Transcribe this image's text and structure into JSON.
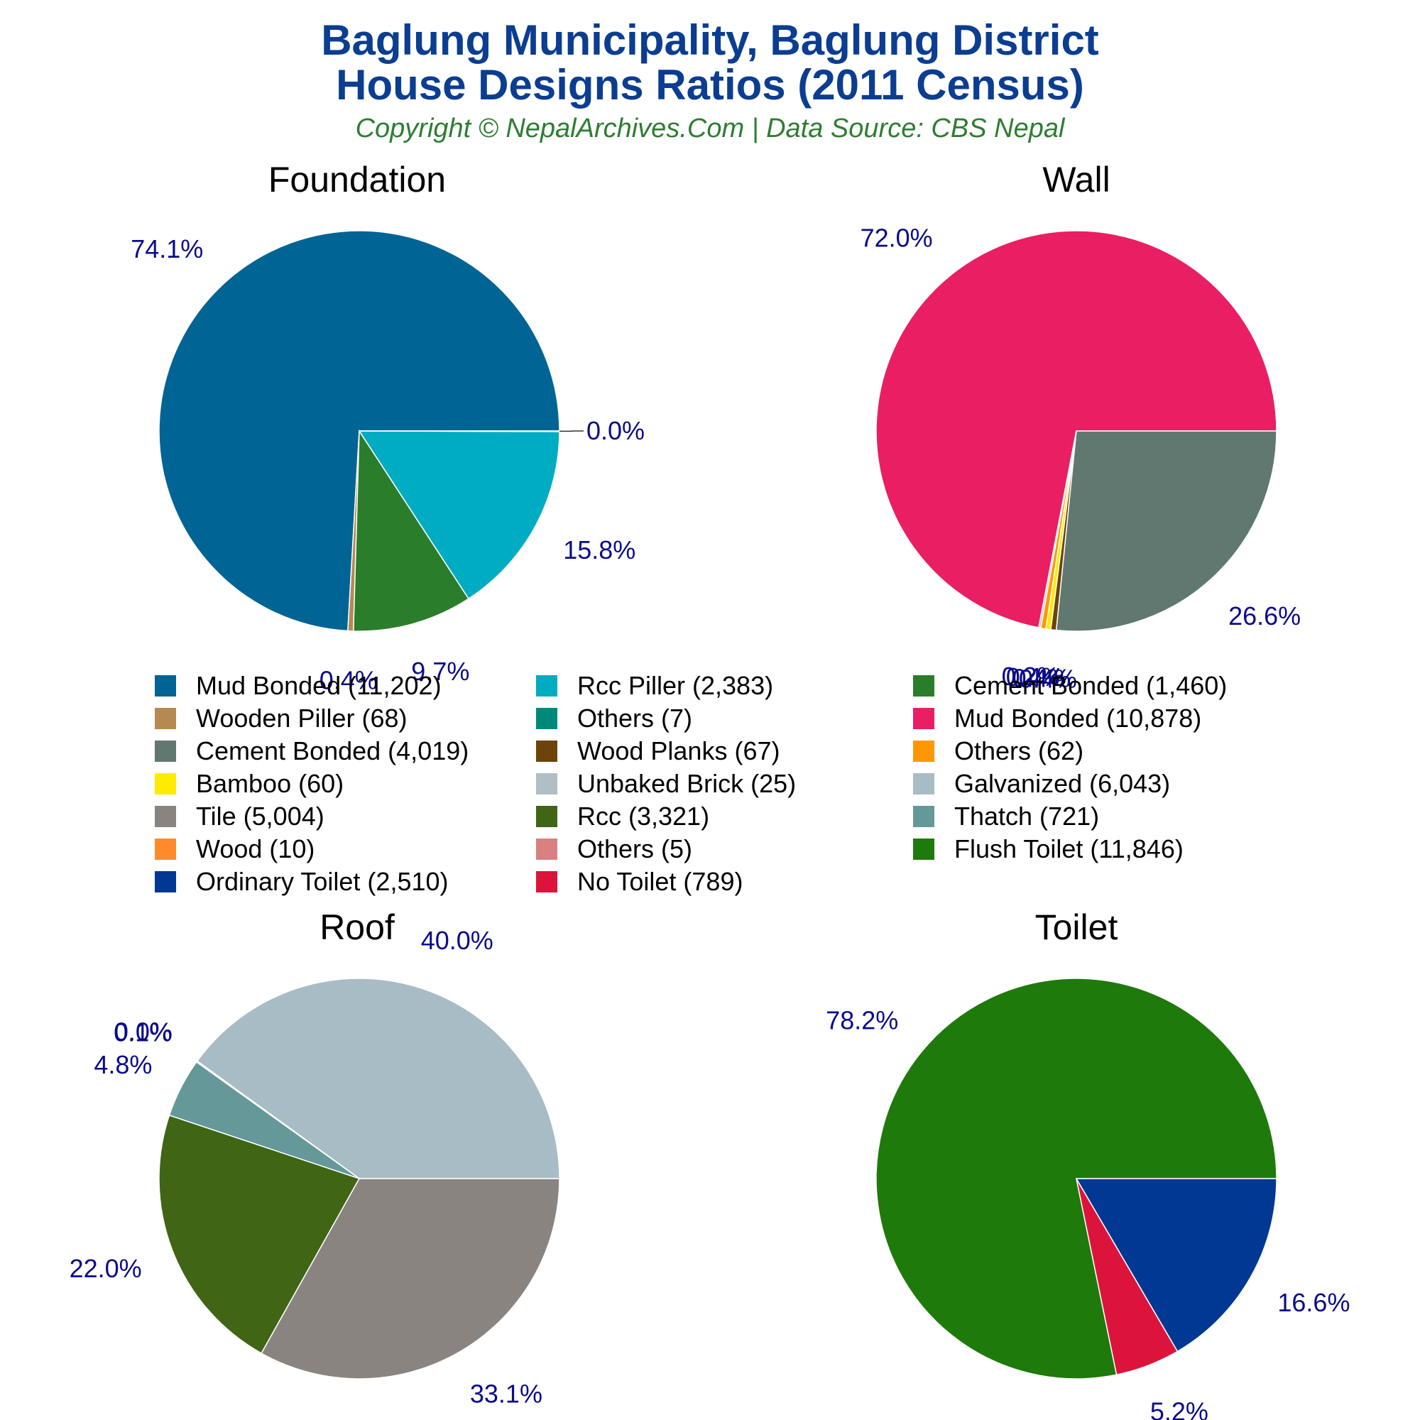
{
  "title_line1": "Baglung Municipality, Baglung District",
  "title_line2": "House Designs Ratios (2011 Census)",
  "subtitle": "Copyright © NepalArchives.Com | Data Source: CBS Nepal",
  "chart_data": [
    {
      "type": "pie",
      "title": "Foundation",
      "series": [
        {
          "name": "Mud Bonded",
          "value": 11202,
          "label": "74.1%",
          "color": "#006494"
        },
        {
          "name": "Wooden Piller",
          "value": 68,
          "label": "0.4%",
          "color": "#b58a52"
        },
        {
          "name": "Cement Bonded",
          "value": 1460,
          "label": "9.7%",
          "color": "#2a7d2a"
        },
        {
          "name": "Rcc Piller",
          "value": 2383,
          "label": "15.8%",
          "color": "#00acc1"
        },
        {
          "name": "Others",
          "value": 7,
          "label": "0.0%",
          "color": "#00897b"
        }
      ]
    },
    {
      "type": "pie",
      "title": "Wall",
      "series": [
        {
          "name": "Mud Bonded",
          "value": 10878,
          "label": "72.0%",
          "color": "#e91e63"
        },
        {
          "name": "Unbaked Brick",
          "value": 25,
          "label": "0.2%",
          "color": "#b0bec5"
        },
        {
          "name": "Others",
          "value": 62,
          "label": "0.4%",
          "color": "#ff9800"
        },
        {
          "name": "Bamboo",
          "value": 60,
          "label": "0.4%",
          "color": "#ffeb00"
        },
        {
          "name": "Wood Planks",
          "value": 67,
          "label": "0.4%",
          "color": "#6d4407"
        },
        {
          "name": "Cement Bonded",
          "value": 4019,
          "label": "26.6%",
          "color": "#607870"
        }
      ]
    },
    {
      "type": "pie",
      "title": "Roof",
      "series": [
        {
          "name": "Galvanized",
          "value": 6043,
          "label": "40.0%",
          "color": "#a8bcc5"
        },
        {
          "name": "Others",
          "value": 5,
          "label": "0.0%",
          "color": "#d98080"
        },
        {
          "name": "Wood",
          "value": 10,
          "label": "0.1%",
          "color": "#ff8a2a"
        },
        {
          "name": "Thatch",
          "value": 721,
          "label": "4.8%",
          "color": "#659899"
        },
        {
          "name": "Rcc",
          "value": 3321,
          "label": "22.0%",
          "color": "#3f6515"
        },
        {
          "name": "Tile",
          "value": 5004,
          "label": "33.1%",
          "color": "#8a8480"
        }
      ]
    },
    {
      "type": "pie",
      "title": "Toilet",
      "series": [
        {
          "name": "Flush Toilet",
          "value": 11846,
          "label": "78.2%",
          "color": "#1e7a0a"
        },
        {
          "name": "No Toilet",
          "value": 789,
          "label": "5.2%",
          "color": "#dc143c"
        },
        {
          "name": "Ordinary Toilet",
          "value": 2510,
          "label": "16.6%",
          "color": "#003893"
        }
      ]
    }
  ],
  "legend": [
    {
      "label": "Mud Bonded (11,202)",
      "color": "#006494"
    },
    {
      "label": "Rcc Piller (2,383)",
      "color": "#00acc1"
    },
    {
      "label": "Cement Bonded (1,460)",
      "color": "#2a7d2a"
    },
    {
      "label": "Wooden Piller (68)",
      "color": "#b58a52"
    },
    {
      "label": "Others (7)",
      "color": "#00897b"
    },
    {
      "label": "Mud Bonded (10,878)",
      "color": "#e91e63"
    },
    {
      "label": "Cement Bonded (4,019)",
      "color": "#607870"
    },
    {
      "label": "Wood Planks (67)",
      "color": "#6d4407"
    },
    {
      "label": "Others (62)",
      "color": "#ff9800"
    },
    {
      "label": "Bamboo (60)",
      "color": "#ffeb00"
    },
    {
      "label": "Unbaked Brick (25)",
      "color": "#b0bec5"
    },
    {
      "label": "Galvanized (6,043)",
      "color": "#a8bcc5"
    },
    {
      "label": "Tile (5,004)",
      "color": "#8a8480"
    },
    {
      "label": "Rcc (3,321)",
      "color": "#3f6515"
    },
    {
      "label": "Thatch (721)",
      "color": "#659899"
    },
    {
      "label": "Wood (10)",
      "color": "#ff8a2a"
    },
    {
      "label": "Others (5)",
      "color": "#d98080"
    },
    {
      "label": "Flush Toilet (11,846)",
      "color": "#1e7a0a"
    },
    {
      "label": "Ordinary Toilet (2,510)",
      "color": "#003893"
    },
    {
      "label": "No Toilet (789)",
      "color": "#dc143c"
    }
  ]
}
